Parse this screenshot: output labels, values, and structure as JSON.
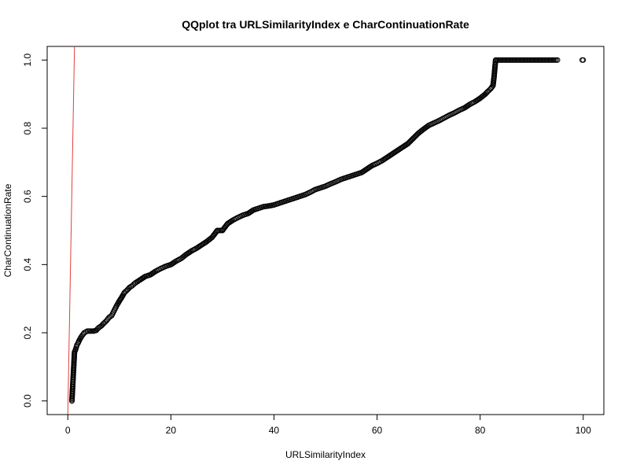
{
  "chart_data": {
    "type": "scatter",
    "title": "QQplot tra URLSimilarityIndex e CharContinuationRate",
    "xlabel": "URLSimilarityIndex",
    "ylabel": "CharContinuationRate",
    "xlim": [
      -4,
      104
    ],
    "ylim": [
      -0.04,
      1.04
    ],
    "xticks": [
      0,
      20,
      40,
      60,
      80,
      100
    ],
    "yticks": [
      0.0,
      0.2,
      0.4,
      0.6,
      0.8,
      1.0
    ],
    "xtick_labels": [
      "0",
      "20",
      "40",
      "60",
      "80",
      "100"
    ],
    "ytick_labels": [
      "0.0",
      "0.2",
      "0.4",
      "0.6",
      "0.8",
      "1.0"
    ],
    "grid": false,
    "series": [
      {
        "marker": "open-circle",
        "color": "#000000",
        "x": [
          0.8,
          1.3,
          1.5,
          1.8,
          2.0,
          2.3,
          2.7,
          3.2,
          3.8,
          4.5,
          5.0,
          5.5,
          6.0,
          6.5,
          7.0,
          7.5,
          8.0,
          8.5,
          9.0,
          9.5,
          10.0,
          10.5,
          11.0,
          11.5,
          12.0,
          12.5,
          13.0,
          14.0,
          15.0,
          16.0,
          17.0,
          18.0,
          19.0,
          20.0,
          21.0,
          22.0,
          23.0,
          24.0,
          25.0,
          26.0,
          27.0,
          28.0,
          29.0,
          30.0,
          31.0,
          32.0,
          33.0,
          34.0,
          35.0,
          36.0,
          37.0,
          38.0,
          39.0,
          40.0,
          41.0,
          42.0,
          43.0,
          44.0,
          45.0,
          46.0,
          47.0,
          48.0,
          49.0,
          50.0,
          51.0,
          52.0,
          53.0,
          54.0,
          55.0,
          56.0,
          57.0,
          58.0,
          59.0,
          60.0,
          61.0,
          62.0,
          63.0,
          64.0,
          65.0,
          66.0,
          67.0,
          68.0,
          69.0,
          70.0,
          71.0,
          72.0,
          73.0,
          74.0,
          75.0,
          76.0,
          77.0,
          78.0,
          79.0,
          80.0,
          81.0,
          81.5,
          82.0,
          82.5,
          82.7,
          83.0,
          84.0,
          85.0,
          86.0,
          87.0,
          88.0,
          89.0,
          90.0,
          91.0,
          92.0,
          93.0,
          94.0,
          95.0,
          99.8,
          100.0
        ],
        "y": [
          0.0,
          0.143,
          0.15,
          0.165,
          0.17,
          0.18,
          0.19,
          0.2,
          0.205,
          0.205,
          0.205,
          0.207,
          0.215,
          0.22,
          0.228,
          0.235,
          0.245,
          0.25,
          0.265,
          0.28,
          0.293,
          0.305,
          0.318,
          0.325,
          0.333,
          0.338,
          0.345,
          0.355,
          0.365,
          0.37,
          0.38,
          0.388,
          0.395,
          0.4,
          0.41,
          0.418,
          0.43,
          0.44,
          0.448,
          0.458,
          0.468,
          0.48,
          0.5,
          0.5,
          0.52,
          0.53,
          0.538,
          0.545,
          0.55,
          0.56,
          0.565,
          0.57,
          0.572,
          0.575,
          0.58,
          0.585,
          0.59,
          0.595,
          0.6,
          0.605,
          0.612,
          0.62,
          0.625,
          0.63,
          0.637,
          0.643,
          0.65,
          0.655,
          0.66,
          0.665,
          0.67,
          0.68,
          0.69,
          0.697,
          0.705,
          0.715,
          0.725,
          0.735,
          0.745,
          0.755,
          0.77,
          0.785,
          0.797,
          0.808,
          0.815,
          0.822,
          0.83,
          0.838,
          0.845,
          0.853,
          0.86,
          0.87,
          0.878,
          0.888,
          0.9,
          0.908,
          0.915,
          0.925,
          0.95,
          1.0,
          1.0,
          1.0,
          1.0,
          1.0,
          1.0,
          1.0,
          1.0,
          1.0,
          1.0,
          1.0,
          1.0,
          1.0,
          1.0,
          1.0
        ]
      }
    ],
    "reference_line": {
      "color": "#e0403c",
      "x": [
        0.0,
        1.3
      ],
      "y": [
        -0.04,
        1.04
      ]
    }
  }
}
